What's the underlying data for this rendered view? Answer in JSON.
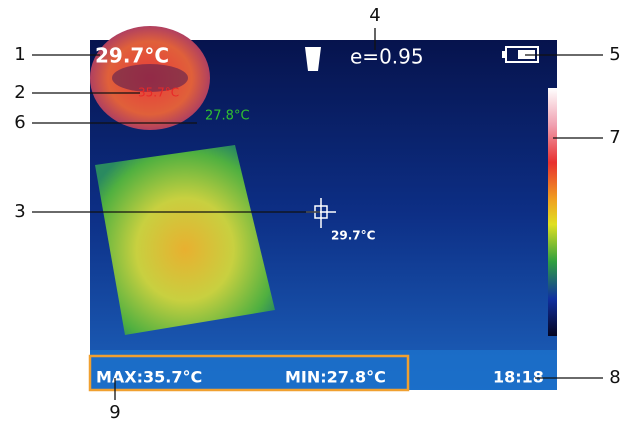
{
  "callouts": [
    "1",
    "2",
    "3",
    "4",
    "5",
    "6",
    "7",
    "8",
    "9"
  ],
  "screen": {
    "center_temp": "29.7°C",
    "emissivity": "e=0.95",
    "hot_spot": "35.7°C",
    "cold_spot": "27.8°C",
    "crosshair_temp": "29.7°C",
    "max": "MAX:35.7°C",
    "min": "MIN:27.8°C",
    "time": "18:18"
  }
}
